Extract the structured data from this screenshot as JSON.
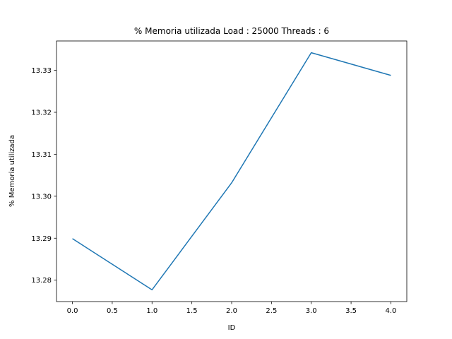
{
  "chart_data": {
    "type": "line",
    "title": "% Memoria utilizada Load : 25000 Threads : 6",
    "xlabel": "ID",
    "ylabel": "% Memoria utilizada",
    "x": [
      0,
      1,
      2,
      3,
      4
    ],
    "series": [
      {
        "values": [
          13.2899,
          13.2777,
          13.3032,
          13.3342,
          13.3288
        ],
        "color": "#1f77b4"
      }
    ],
    "xticks": [
      "0.0",
      "0.5",
      "1.0",
      "1.5",
      "2.0",
      "2.5",
      "3.0",
      "3.5",
      "4.0"
    ],
    "yticks": [
      "13.28",
      "13.29",
      "13.30",
      "13.31",
      "13.32",
      "13.33"
    ],
    "xlim": [
      -0.2,
      4.2
    ],
    "ylim": [
      13.2749,
      13.337
    ],
    "grid": false,
    "legend": "none"
  }
}
